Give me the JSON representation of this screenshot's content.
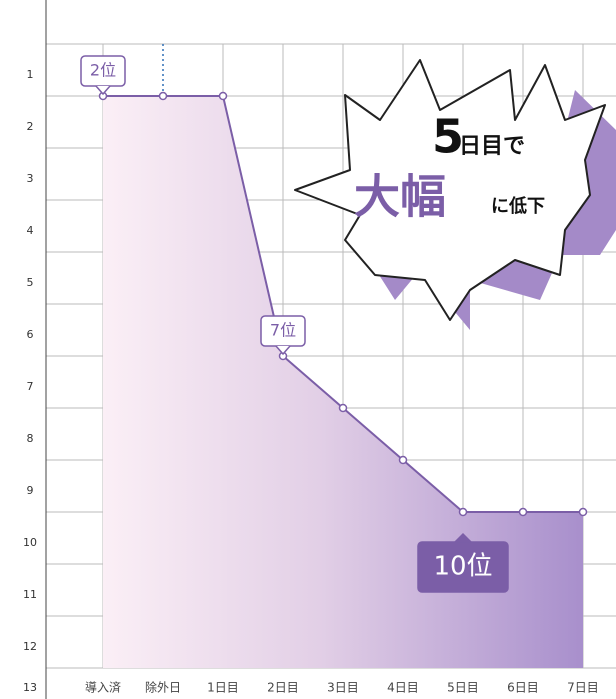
{
  "chart_data": {
    "type": "line",
    "categories": [
      "導入済",
      "除外日",
      "1日目",
      "2日目",
      "3日目",
      "4日目",
      "5日目",
      "6日目",
      "7日目"
    ],
    "highlight_category": 1,
    "highlight_color": "#2f6fb5",
    "series": [
      {
        "color": "#7b5ea7",
        "values": [
          2,
          2,
          2,
          7,
          8,
          9,
          10,
          10,
          10
        ],
        "value_labels": [
          "2位",
          null,
          null,
          "7位",
          null,
          null,
          "10位",
          null,
          null
        ]
      }
    ],
    "ylim": [
      1,
      13
    ],
    "yticks": [
      1,
      2,
      3,
      4,
      5,
      6,
      7,
      8,
      9,
      10,
      11,
      12,
      13
    ],
    "inverted": true,
    "grid": true,
    "callout": {
      "lines": [
        [
          "5",
          "日目で"
        ],
        [
          "大幅",
          "に低下"
        ]
      ]
    }
  }
}
